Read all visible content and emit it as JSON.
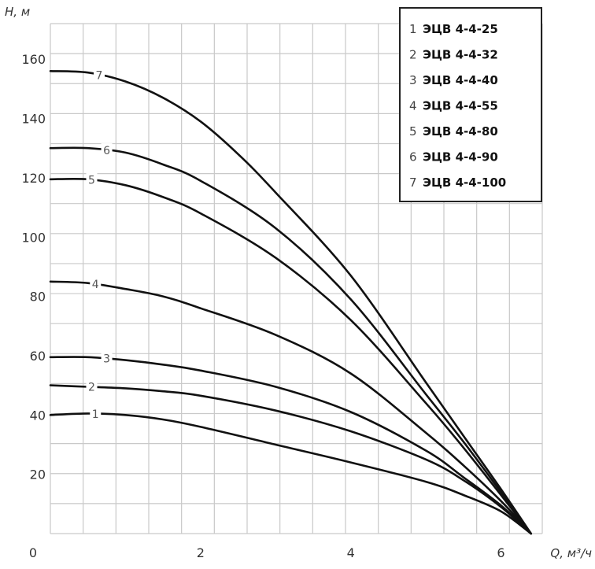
{
  "chart_data": {
    "type": "line",
    "ylabel": "H, м",
    "xlabel": "Q, м³/ч",
    "origin_label": "0",
    "xlim": [
      0,
      6.55
    ],
    "ylim": [
      0,
      172
    ],
    "x_ticks": [
      2,
      4,
      6
    ],
    "x_tick_labels": [
      "2",
      "4",
      "6"
    ],
    "y_ticks": [
      20,
      40,
      60,
      80,
      100,
      120,
      140,
      160
    ],
    "y_tick_labels": [
      "20",
      "40",
      "60",
      "80",
      "100",
      "120",
      "140",
      "160"
    ],
    "grid": true,
    "legend_position": "top-right",
    "series": [
      {
        "num": "1",
        "name": "ЭЦВ 4-4-25",
        "label_at": 0.6,
        "x": [
          0,
          0.5,
          1,
          1.5,
          2,
          3,
          4,
          5,
          5.5,
          6,
          6.4
        ],
        "y": [
          40,
          40.5,
          40,
          38.5,
          36,
          30,
          24,
          17.5,
          13,
          7.5,
          0
        ]
      },
      {
        "num": "2",
        "name": "ЭЦВ 4-4-32",
        "label_at": 0.55,
        "x": [
          0,
          0.5,
          1,
          1.5,
          2,
          3,
          4,
          5,
          5.5,
          6,
          6.4
        ],
        "y": [
          50,
          49.5,
          49,
          48,
          46.5,
          41.5,
          34.5,
          25,
          18,
          9,
          0
        ]
      },
      {
        "num": "3",
        "name": "ЭЦВ 4-4-40",
        "label_at": 0.75,
        "x": [
          0,
          0.5,
          1,
          1.5,
          2,
          3,
          4,
          5,
          5.5,
          6,
          6.4
        ],
        "y": [
          59.5,
          59.5,
          58.5,
          57,
          55,
          49.5,
          41,
          28,
          19,
          9.5,
          0
        ]
      },
      {
        "num": "4",
        "name": "ЭЦВ 4-4-55",
        "label_at": 0.6,
        "x": [
          0,
          0.5,
          1,
          1.5,
          2,
          3,
          4,
          5,
          5.5,
          6,
          6.4
        ],
        "y": [
          85,
          84.5,
          82.5,
          80,
          76,
          67,
          54,
          34,
          23,
          11,
          0
        ]
      },
      {
        "num": "5",
        "name": "ЭЦВ 4-4-80",
        "label_at": 0.55,
        "x": [
          0,
          0.5,
          1,
          1.5,
          2,
          3,
          4,
          5,
          5.5,
          6,
          6.4
        ],
        "y": [
          119.5,
          119.5,
          117.5,
          113.5,
          108,
          93,
          72,
          44,
          29,
          13,
          0
        ]
      },
      {
        "num": "6",
        "name": "ЭЦВ 4-4-90",
        "label_at": 0.75,
        "x": [
          0,
          0.5,
          1,
          1.5,
          2,
          3,
          4,
          5,
          5.5,
          6,
          6.4
        ],
        "y": [
          130,
          130,
          128.5,
          124.5,
          119,
          103,
          79,
          47,
          31,
          14,
          0
        ]
      },
      {
        "num": "7",
        "name": "ЭЦВ 4-4-100",
        "label_at": 0.65,
        "x": [
          0,
          0.5,
          1,
          1.5,
          2,
          2.5,
          3,
          4,
          5,
          5.5,
          6,
          6.4
        ],
        "y": [
          156,
          155.5,
          152.5,
          147,
          139,
          128,
          115,
          87,
          51,
          33,
          15,
          0
        ]
      }
    ]
  }
}
